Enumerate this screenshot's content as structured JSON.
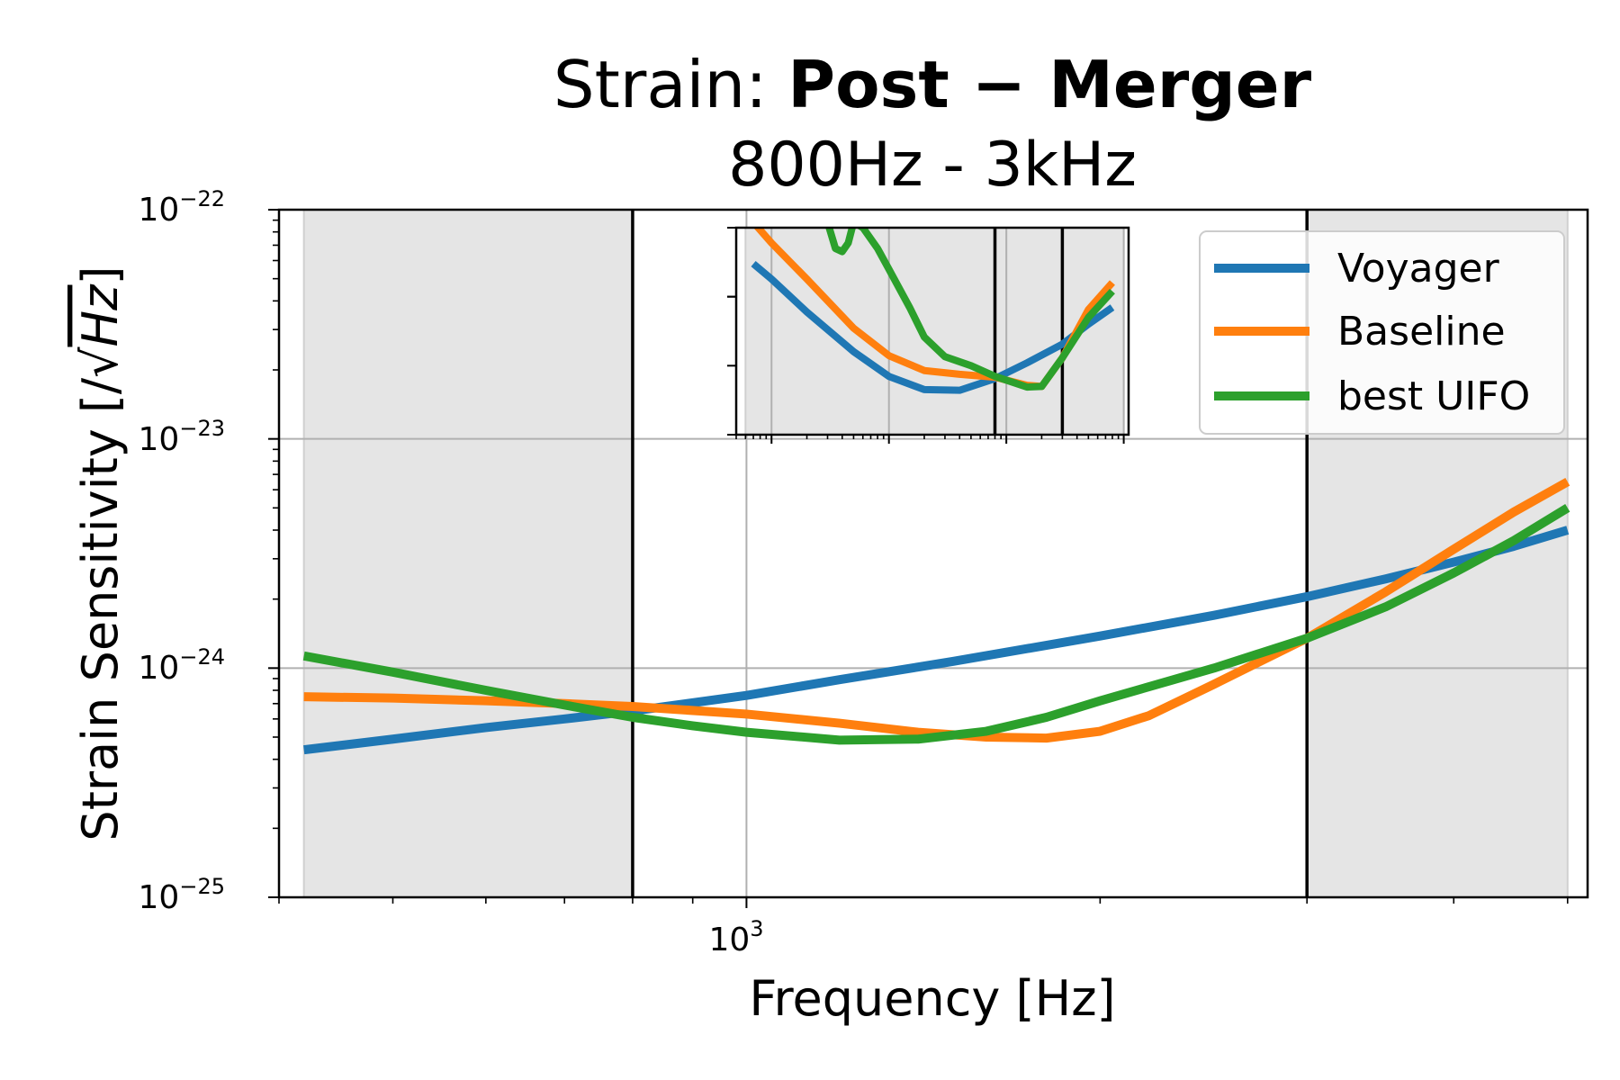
{
  "chart_data": {
    "type": "line",
    "title_prefix": "Strain: ",
    "title_bold": "Post − Merger",
    "subtitle": "800Hz - 3kHz",
    "xlabel": "Frequency [Hz]",
    "ylabel_prefix": "Strain Sensitivity [/",
    "ylabel_radicand": "Hz",
    "ylabel_suffix": "]",
    "xscale": "log",
    "yscale": "log",
    "xlim": [
      400,
      5200
    ],
    "ylim": [
      1e-25,
      1e-22
    ],
    "grid": true,
    "legend_position": "top-right",
    "x_tick_label": {
      "base": "10",
      "exp": "3",
      "value": 1000
    },
    "y_tick_labels": [
      {
        "base": "10",
        "exp": "−22",
        "value": 1e-22
      },
      {
        "base": "10",
        "exp": "−23",
        "value": 1e-23
      },
      {
        "base": "10",
        "exp": "−24",
        "value": 1e-24
      },
      {
        "base": "10",
        "exp": "−25",
        "value": 1e-25
      }
    ],
    "band_edges_hz": [
      800,
      3000
    ],
    "shaded_ranges_hz": [
      [
        420,
        800
      ],
      [
        3000,
        5000
      ]
    ],
    "series": [
      {
        "name": "Voyager",
        "color": "#1f77b4",
        "x": [
          420,
          500,
          600,
          700,
          800,
          1000,
          1200,
          1500,
          2000,
          2500,
          3000,
          3500,
          4000,
          4500,
          5000
        ],
        "y": [
          4.4e-25,
          4.9e-25,
          5.5e-25,
          6e-25,
          6.5e-25,
          7.6e-25,
          8.9e-25,
          1.07e-24,
          1.38e-24,
          1.7e-24,
          2.05e-24,
          2.45e-24,
          2.9e-24,
          3.4e-24,
          4e-24
        ]
      },
      {
        "name": "Baseline",
        "color": "#ff7f0e",
        "x": [
          420,
          500,
          600,
          700,
          800,
          1000,
          1200,
          1400,
          1600,
          1800,
          2000,
          2200,
          2500,
          3000,
          3500,
          4000,
          4500,
          5000
        ],
        "y": [
          7.5e-25,
          7.4e-25,
          7.2e-25,
          7e-25,
          6.8e-25,
          6.3e-25,
          5.75e-25,
          5.25e-25,
          5e-25,
          4.95e-25,
          5.3e-25,
          6.2e-25,
          8.5e-25,
          1.35e-24,
          2.15e-24,
          3.3e-24,
          4.8e-24,
          6.5e-24
        ]
      },
      {
        "name": "best UIFO",
        "color": "#2ca02c",
        "x": [
          420,
          500,
          600,
          700,
          800,
          900,
          1000,
          1200,
          1400,
          1600,
          1800,
          2000,
          2500,
          3000,
          3500,
          4000,
          4500,
          5000
        ],
        "y": [
          1.13e-24,
          9.6e-25,
          8e-25,
          6.9e-25,
          6.1e-25,
          5.6e-25,
          5.25e-25,
          4.85e-25,
          4.9e-25,
          5.3e-25,
          6.1e-25,
          7.2e-25,
          1e-24,
          1.35e-24,
          1.85e-24,
          2.6e-24,
          3.6e-24,
          5e-24
        ]
      }
    ],
    "inset": {
      "xscale": "log",
      "yscale": "log",
      "xlim": [
        5,
        11000
      ],
      "ylim": [
        1e-25,
        1e-22
      ],
      "band_edges_hz": [
        800,
        3000
      ],
      "shaded_ranges_hz": [
        [
          6,
          10000
        ]
      ],
      "series": [
        {
          "name": "Voyager",
          "color": "#1f77b4",
          "x": [
            7,
            10,
            20,
            50,
            100,
            200,
            400,
            800,
            1500,
            3000,
            5000,
            8000
          ],
          "y": [
            3e-23,
            1.8e-23,
            6e-24,
            1.6e-24,
            7e-25,
            4.5e-25,
            4.4e-25,
            6.5e-25,
            1.1e-24,
            2.05e-24,
            4e-24,
            7e-24
          ]
        },
        {
          "name": "Baseline",
          "color": "#ff7f0e",
          "x": [
            7,
            10,
            20,
            50,
            100,
            200,
            400,
            800,
            1500,
            2000,
            3000,
            5000,
            8000
          ],
          "y": [
            1.2e-22,
            6e-23,
            1.8e-23,
            3.5e-24,
            1.4e-24,
            8.5e-25,
            7.5e-25,
            6.8e-25,
            5.2e-25,
            5e-25,
            1.3e-24,
            6.5e-24,
            1.6e-23
          ]
        },
        {
          "name": "best UIFO",
          "color": "#2ca02c",
          "x": [
            30,
            35,
            40,
            45,
            50,
            60,
            80,
            100,
            150,
            200,
            300,
            500,
            800,
            1500,
            2000,
            3000,
            5000,
            8000
          ],
          "y": [
            1.2e-22,
            5e-23,
            4.5e-23,
            6e-23,
            1.2e-22,
            1e-22,
            5e-23,
            2.5e-23,
            7e-24,
            2.6e-24,
            1.35e-24,
            1e-24,
            7e-25,
            4.9e-25,
            5e-25,
            1.3e-24,
            5e-24,
            1.2e-23
          ]
        }
      ]
    }
  }
}
